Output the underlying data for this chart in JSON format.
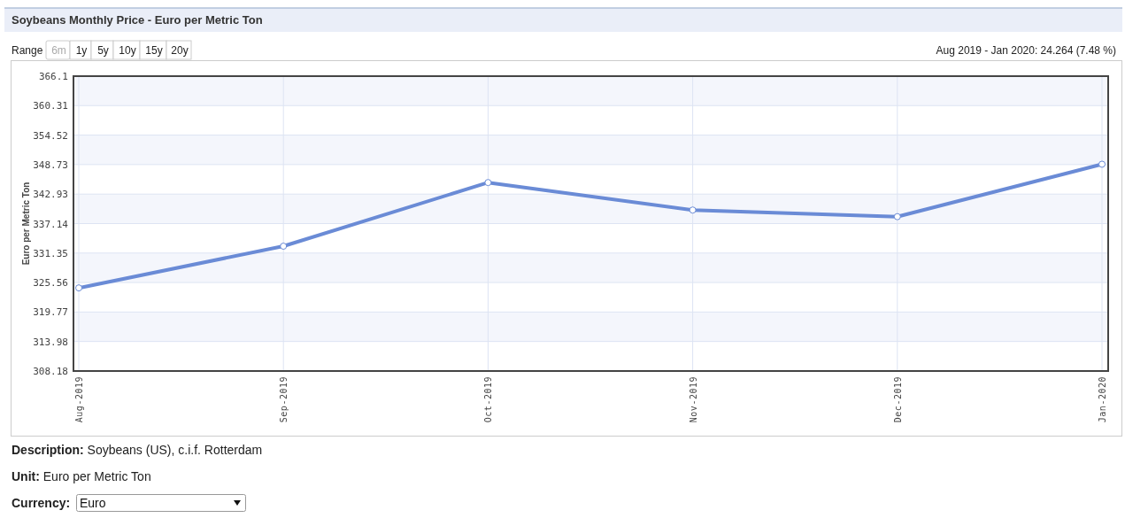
{
  "chart_data": {
    "type": "line",
    "title": "Soybeans Monthly Price - Euro per Metric Ton",
    "ylabel": "Euro per Metric Ton",
    "categories": [
      "Aug-2019",
      "Sep-2019",
      "Oct-2019",
      "Nov-2019",
      "Dec-2019",
      "Jan-2020"
    ],
    "series": [
      {
        "color": "#6a8bd6",
        "values": [
          324.5,
          332.7,
          345.2,
          339.8,
          338.5,
          348.8
        ]
      }
    ],
    "ylim": [
      308.18,
      366.1
    ],
    "yticks": [
      308.18,
      313.98,
      319.77,
      325.56,
      331.35,
      337.14,
      342.93,
      348.73,
      354.52,
      360.31,
      366.1
    ],
    "grid": true,
    "marker": "circle",
    "line_style": "solid",
    "annotations": [
      "Range",
      "6m",
      "1y",
      "5y",
      "10y",
      "15y",
      "20y",
      "Aug 2019 - Jan 2020: 24.264 (7.48 %)",
      "Description: Soybeans (US), c.i.f. Rotterdam",
      "Unit: Euro per Metric Ton",
      "Currency:",
      "Euro"
    ]
  }
}
